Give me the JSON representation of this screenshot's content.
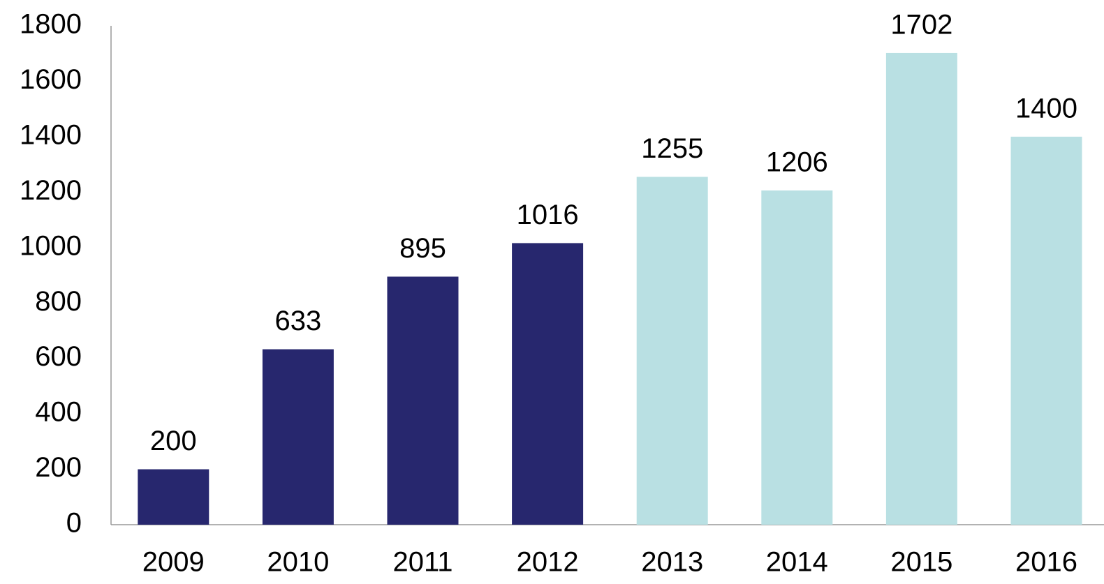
{
  "chart_data": {
    "type": "bar",
    "categories": [
      "2009",
      "2010",
      "2011",
      "2012",
      "2013",
      "2014",
      "2015",
      "2016"
    ],
    "values": [
      200,
      633,
      895,
      1016,
      1255,
      1206,
      1702,
      1400
    ],
    "colors": [
      "#27276e",
      "#27276e",
      "#27276e",
      "#27276e",
      "#b9e0e3",
      "#b9e0e3",
      "#b9e0e3",
      "#b9e0e3"
    ],
    "ylim": [
      0,
      1800
    ],
    "yticks": [
      0,
      200,
      400,
      600,
      800,
      1000,
      1200,
      1400,
      1600,
      1800
    ],
    "grid": false
  }
}
